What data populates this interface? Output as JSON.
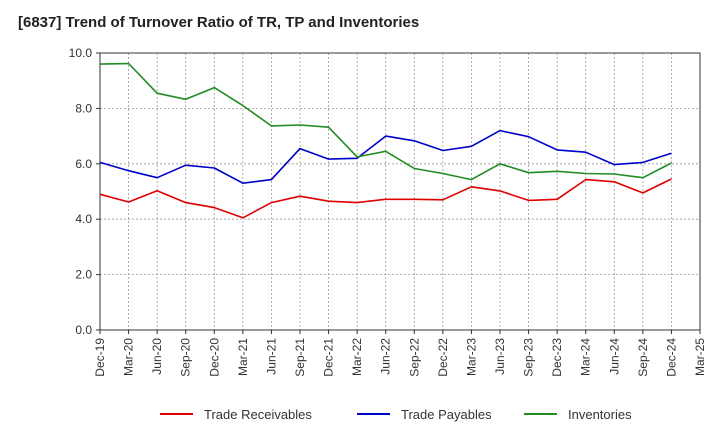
{
  "chart_data": {
    "type": "line",
    "title": "[6837]  Trend of Turnover Ratio of TR, TP and Inventories",
    "xlabel": "",
    "ylabel": "",
    "ylim": [
      0,
      10
    ],
    "y_ticks": [
      "0.0",
      "2.0",
      "4.0",
      "6.0",
      "8.0",
      "10.0"
    ],
    "x_tick_labels": [
      "Dec-19",
      "Mar-20",
      "Jun-20",
      "Sep-20",
      "Dec-20",
      "Mar-21",
      "Jun-21",
      "Sep-21",
      "Dec-21",
      "Mar-22",
      "Jun-22",
      "Sep-22",
      "Dec-22",
      "Mar-23",
      "Jun-23",
      "Sep-23",
      "Dec-23",
      "Mar-24",
      "Jun-24",
      "Sep-24",
      "Dec-24",
      "Mar-25"
    ],
    "grid": true,
    "legend_position": "bottom",
    "series": [
      {
        "name": "Trade Receivables",
        "color": "#e00000",
        "values": [
          4.9,
          4.62,
          5.03,
          4.6,
          4.42,
          4.05,
          4.6,
          4.83,
          4.65,
          4.6,
          4.72,
          4.72,
          4.7,
          5.17,
          5.02,
          4.68,
          4.72,
          5.43,
          5.35,
          4.95,
          5.45,
          null
        ]
      },
      {
        "name": "Trade Payables",
        "color": "#0000cc",
        "values": [
          6.05,
          5.75,
          5.5,
          5.95,
          5.85,
          5.3,
          5.43,
          6.55,
          6.17,
          6.2,
          7.0,
          6.83,
          6.48,
          6.63,
          7.2,
          6.98,
          6.5,
          6.42,
          5.97,
          6.05,
          6.38,
          null
        ]
      },
      {
        "name": "Inventories",
        "color": "#228b22",
        "values": [
          9.6,
          9.62,
          8.55,
          8.33,
          8.75,
          8.1,
          7.37,
          7.4,
          7.32,
          6.25,
          6.45,
          5.83,
          5.65,
          5.43,
          6.0,
          5.68,
          5.73,
          5.65,
          5.63,
          5.5,
          6.03,
          null
        ]
      }
    ]
  }
}
